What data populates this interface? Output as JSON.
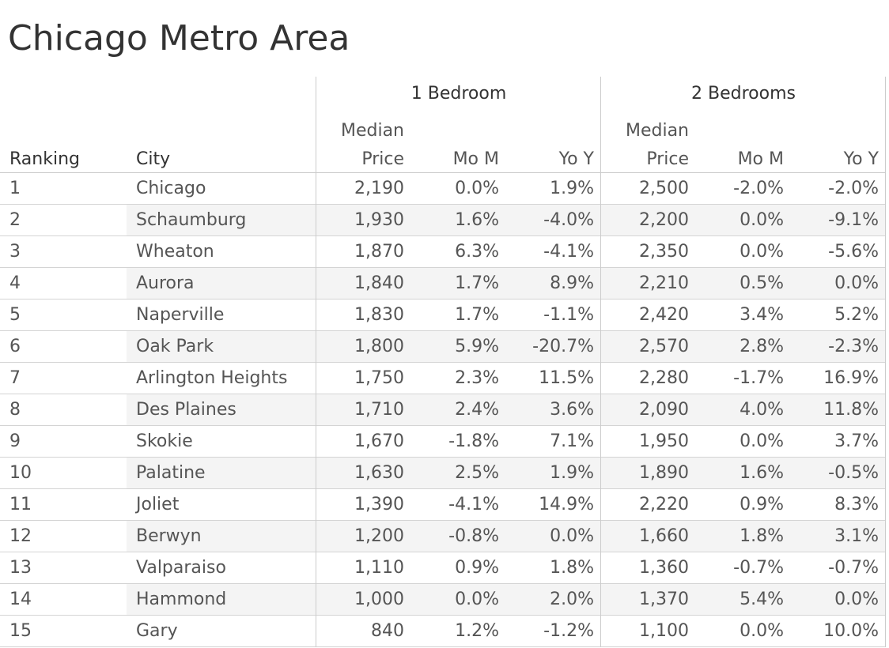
{
  "chart_data": {
    "type": "table",
    "title": "Chicago Metro Area",
    "column_groups": [
      "1 Bedroom",
      "2 Bedrooms"
    ],
    "columns": {
      "ranking": "Ranking",
      "city": "City",
      "median_top": "Median",
      "median_bottom": "Price",
      "mom": "Mo M",
      "yoy": "Yo Y"
    },
    "rows": [
      {
        "rank": "1",
        "city": "Chicago",
        "b1_price": "2,190",
        "b1_mom": "0.0%",
        "b1_yoy": "1.9%",
        "b2_price": "2,500",
        "b2_mom": "-2.0%",
        "b2_yoy": "-2.0%"
      },
      {
        "rank": "2",
        "city": "Schaumburg",
        "b1_price": "1,930",
        "b1_mom": "1.6%",
        "b1_yoy": "-4.0%",
        "b2_price": "2,200",
        "b2_mom": "0.0%",
        "b2_yoy": "-9.1%"
      },
      {
        "rank": "3",
        "city": "Wheaton",
        "b1_price": "1,870",
        "b1_mom": "6.3%",
        "b1_yoy": "-4.1%",
        "b2_price": "2,350",
        "b2_mom": "0.0%",
        "b2_yoy": "-5.6%"
      },
      {
        "rank": "4",
        "city": "Aurora",
        "b1_price": "1,840",
        "b1_mom": "1.7%",
        "b1_yoy": "8.9%",
        "b2_price": "2,210",
        "b2_mom": "0.5%",
        "b2_yoy": "0.0%"
      },
      {
        "rank": "5",
        "city": "Naperville",
        "b1_price": "1,830",
        "b1_mom": "1.7%",
        "b1_yoy": "-1.1%",
        "b2_price": "2,420",
        "b2_mom": "3.4%",
        "b2_yoy": "5.2%"
      },
      {
        "rank": "6",
        "city": "Oak Park",
        "b1_price": "1,800",
        "b1_mom": "5.9%",
        "b1_yoy": "-20.7%",
        "b2_price": "2,570",
        "b2_mom": "2.8%",
        "b2_yoy": "-2.3%"
      },
      {
        "rank": "7",
        "city": "Arlington Heights",
        "b1_price": "1,750",
        "b1_mom": "2.3%",
        "b1_yoy": "11.5%",
        "b2_price": "2,280",
        "b2_mom": "-1.7%",
        "b2_yoy": "16.9%"
      },
      {
        "rank": "8",
        "city": "Des Plaines",
        "b1_price": "1,710",
        "b1_mom": "2.4%",
        "b1_yoy": "3.6%",
        "b2_price": "2,090",
        "b2_mom": "4.0%",
        "b2_yoy": "11.8%"
      },
      {
        "rank": "9",
        "city": "Skokie",
        "b1_price": "1,670",
        "b1_mom": "-1.8%",
        "b1_yoy": "7.1%",
        "b2_price": "1,950",
        "b2_mom": "0.0%",
        "b2_yoy": "3.7%"
      },
      {
        "rank": "10",
        "city": "Palatine",
        "b1_price": "1,630",
        "b1_mom": "2.5%",
        "b1_yoy": "1.9%",
        "b2_price": "1,890",
        "b2_mom": "1.6%",
        "b2_yoy": "-0.5%"
      },
      {
        "rank": "11",
        "city": "Joliet",
        "b1_price": "1,390",
        "b1_mom": "-4.1%",
        "b1_yoy": "14.9%",
        "b2_price": "2,220",
        "b2_mom": "0.9%",
        "b2_yoy": "8.3%"
      },
      {
        "rank": "12",
        "city": "Berwyn",
        "b1_price": "1,200",
        "b1_mom": "-0.8%",
        "b1_yoy": "0.0%",
        "b2_price": "1,660",
        "b2_mom": "1.8%",
        "b2_yoy": "3.1%"
      },
      {
        "rank": "13",
        "city": "Valparaiso",
        "b1_price": "1,110",
        "b1_mom": "0.9%",
        "b1_yoy": "1.8%",
        "b2_price": "1,360",
        "b2_mom": "-0.7%",
        "b2_yoy": "-0.7%"
      },
      {
        "rank": "14",
        "city": "Hammond",
        "b1_price": "1,000",
        "b1_mom": "0.0%",
        "b1_yoy": "2.0%",
        "b2_price": "1,370",
        "b2_mom": "5.4%",
        "b2_yoy": "0.0%"
      },
      {
        "rank": "15",
        "city": "Gary",
        "b1_price": "840",
        "b1_mom": "1.2%",
        "b1_yoy": "-1.2%",
        "b2_price": "1,100",
        "b2_mom": "0.0%",
        "b2_yoy": "10.0%"
      }
    ],
    "grid": true,
    "banded_rows": true
  }
}
